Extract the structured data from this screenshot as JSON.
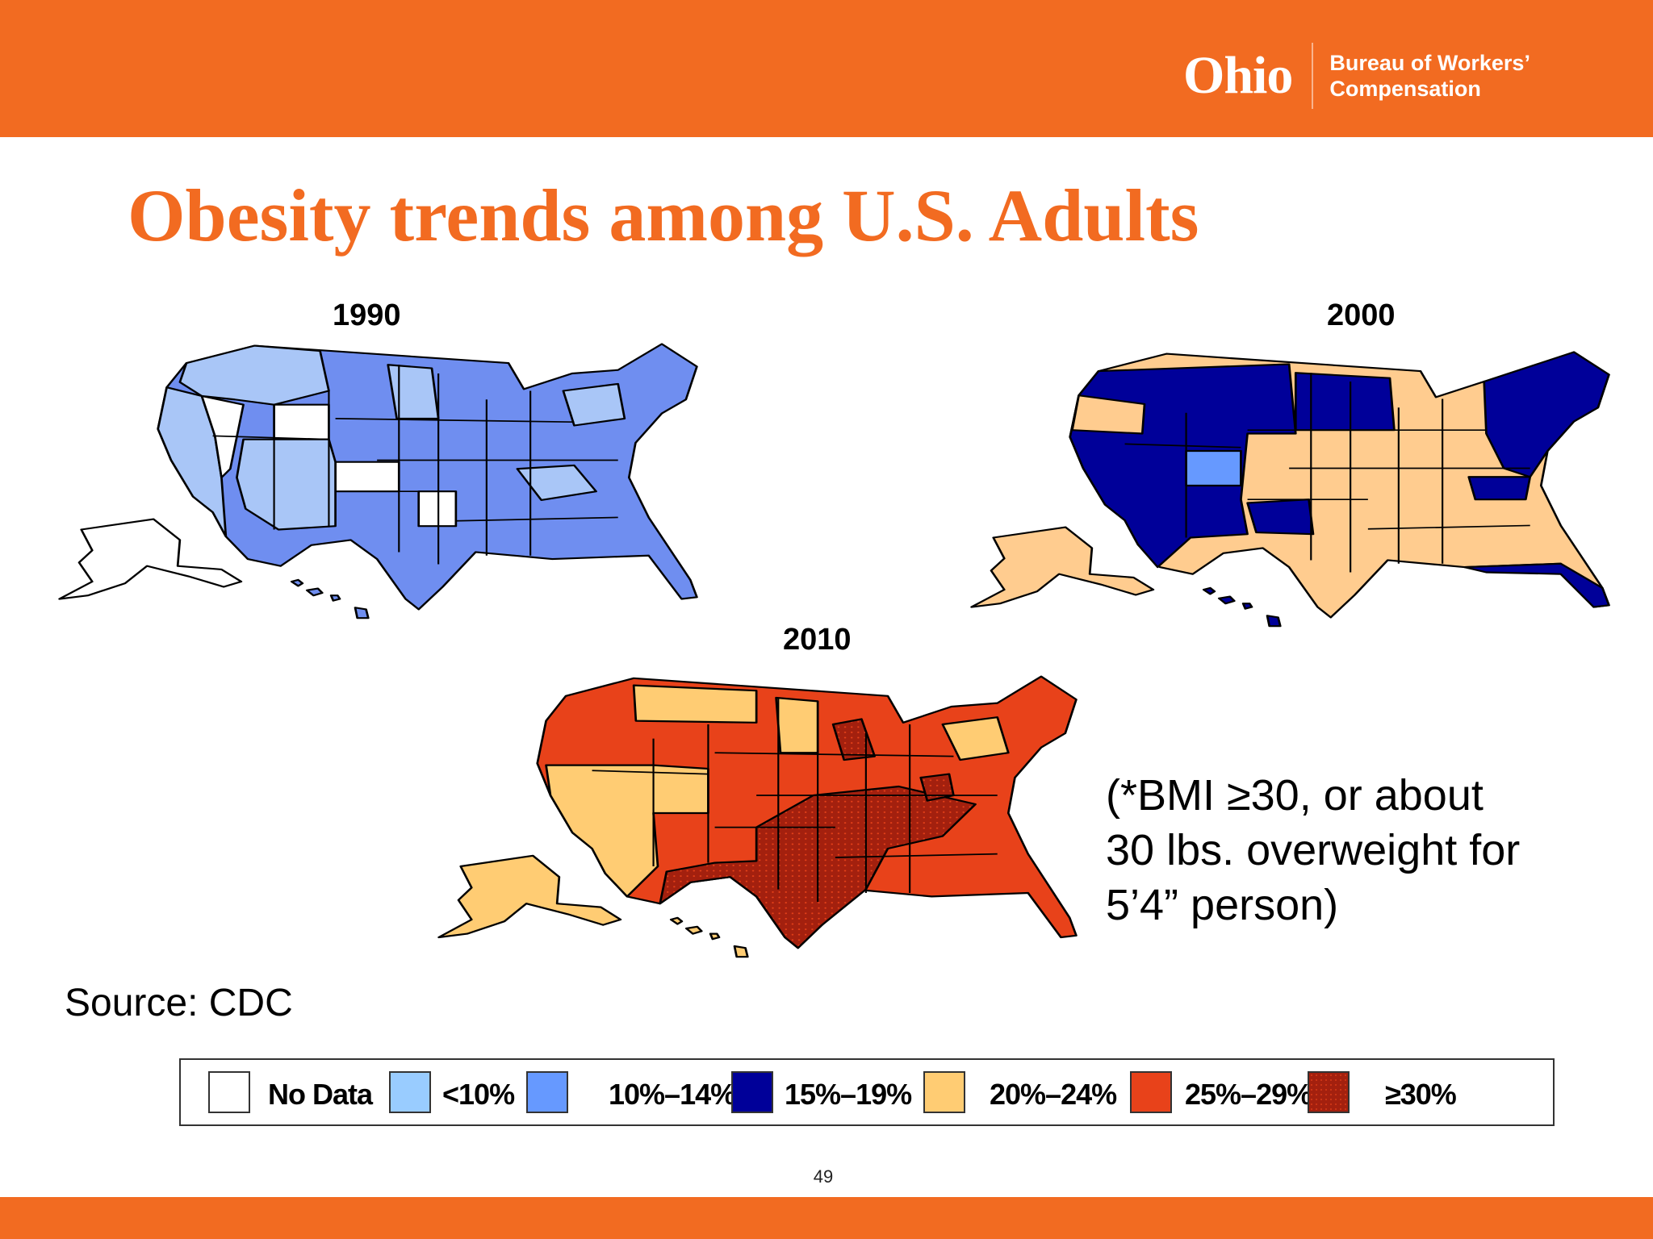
{
  "slide": {
    "title": "Obesity trends among U.S. Adults",
    "page_number": "49"
  },
  "logo": {
    "mark": "Ohio",
    "line1": "Bureau of Workers’",
    "line2": "Compensation"
  },
  "maps": [
    {
      "year": "1990"
    },
    {
      "year": "2000"
    },
    {
      "year": "2010"
    }
  ],
  "note": {
    "line1": "(*BMI ≥30, or about",
    "line2": "30 lbs. overweight for",
    "line3": "5’4” person)"
  },
  "source": "Source: CDC",
  "legend": [
    {
      "label": "No Data",
      "color": "#ffffff"
    },
    {
      "label": "<10%",
      "color": "#99ccff"
    },
    {
      "label": "10%–14%",
      "color": "#6699ff"
    },
    {
      "label": "15%–19%",
      "color": "#000099"
    },
    {
      "label": "20%–24%",
      "color": "#ffcc73"
    },
    {
      "label": "25%–29%",
      "color": "#e8421a"
    },
    {
      "label": "≥30%",
      "color": "#a3200e"
    }
  ],
  "colors": {
    "brand_orange": "#f26b21",
    "map_1990": {
      "base": "#6f8ef0",
      "light": "#a9c6f7",
      "none": "#ffffff"
    },
    "map_2000": {
      "base": "#ffcc8f",
      "dark": "#000099",
      "mid": "#6699ff"
    },
    "map_2010": {
      "base": "#e8421a",
      "light": "#ffcc73",
      "dotted": "#a3200e"
    }
  }
}
